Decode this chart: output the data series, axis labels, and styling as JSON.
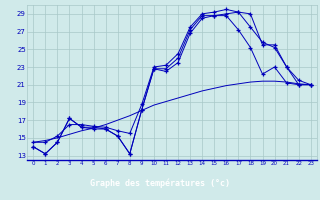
{
  "xlabel": "Graphe des températures (°c)",
  "hours": [
    0,
    1,
    2,
    3,
    4,
    5,
    6,
    7,
    8,
    9,
    10,
    11,
    12,
    13,
    14,
    15,
    16,
    17,
    18,
    19,
    20,
    21,
    22,
    23
  ],
  "t_zigzag": [
    14.0,
    13.2,
    14.5,
    17.2,
    16.2,
    16.2,
    16.0,
    15.2,
    13.2,
    18.2,
    22.8,
    22.8,
    24.0,
    27.2,
    28.8,
    28.8,
    29.0,
    29.2,
    29.0,
    25.5,
    25.5,
    23.0,
    21.0,
    21.0
  ],
  "t_smooth": [
    14.5,
    14.7,
    15.0,
    15.4,
    15.8,
    16.1,
    16.5,
    17.0,
    17.5,
    18.1,
    18.7,
    19.1,
    19.5,
    19.9,
    20.3,
    20.6,
    20.9,
    21.1,
    21.3,
    21.4,
    21.4,
    21.3,
    21.1,
    21.0
  ],
  "t_peak19": [
    14.0,
    13.2,
    14.5,
    17.2,
    16.2,
    16.0,
    16.0,
    15.2,
    13.2,
    18.2,
    22.8,
    22.5,
    23.5,
    26.8,
    28.5,
    28.8,
    28.8,
    27.2,
    25.2,
    22.2,
    23.0,
    21.2,
    21.0,
    21.0
  ],
  "t_top": [
    14.5,
    14.5,
    15.2,
    16.5,
    16.5,
    16.3,
    16.2,
    15.8,
    15.5,
    18.8,
    23.0,
    23.2,
    24.5,
    27.5,
    29.0,
    29.2,
    29.5,
    29.2,
    27.5,
    25.8,
    25.2,
    23.0,
    21.5,
    21.0
  ],
  "bg": "#d0eaea",
  "lc": "#0000bb",
  "gc": "#a8c8c8",
  "bar_bg": "#0000aa",
  "ylim": [
    12.5,
    30
  ],
  "yticks": [
    13,
    15,
    17,
    19,
    21,
    23,
    25,
    27,
    29
  ],
  "ytick_str": [
    "13",
    "15",
    "17",
    "19",
    "21",
    "23",
    "25",
    "27",
    "29"
  ]
}
